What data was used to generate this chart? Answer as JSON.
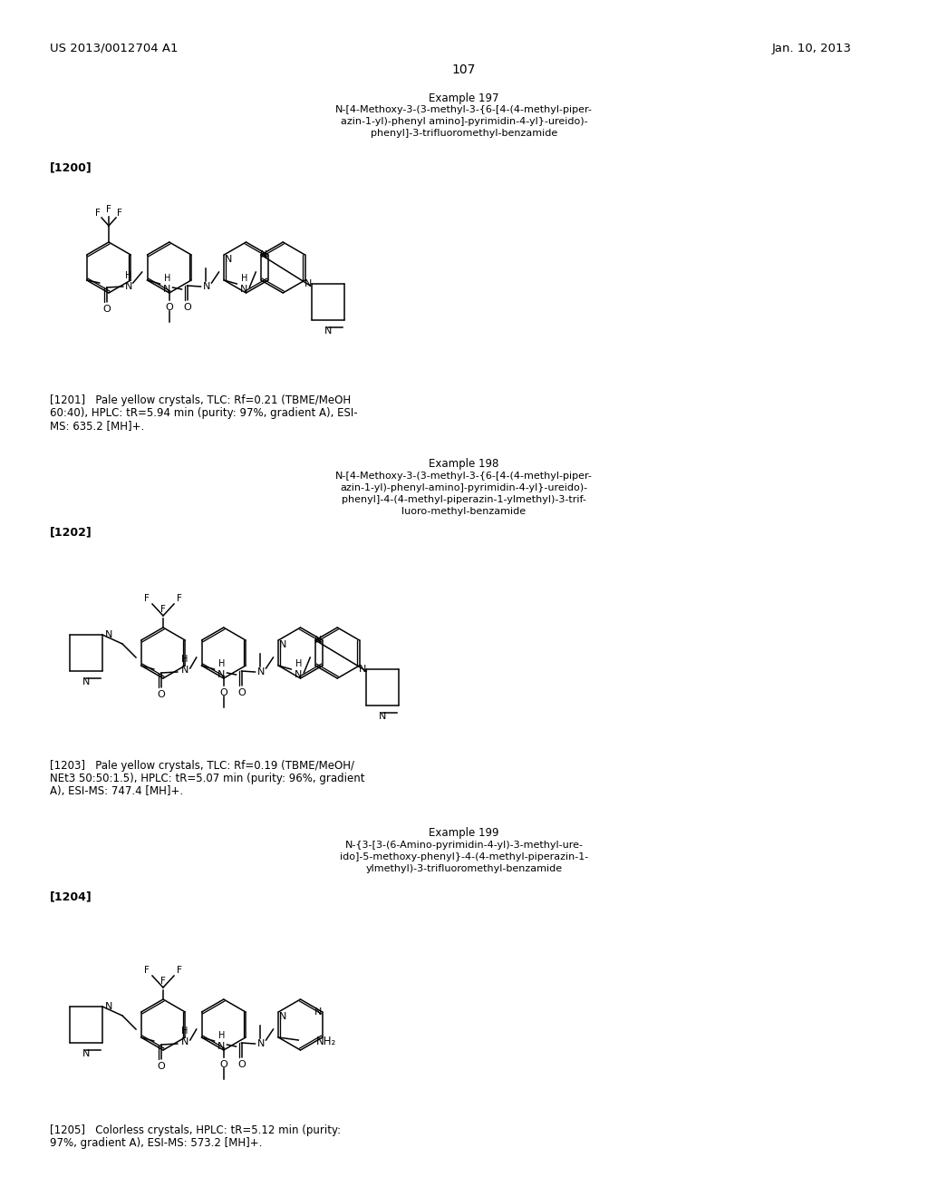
{
  "page_header_left": "US 2013/0012704 A1",
  "page_header_right": "Jan. 10, 2013",
  "page_number": "107",
  "background_color": "#ffffff",
  "text_color": "#000000",
  "example197": {
    "label": "Example 197",
    "name_lines": [
      "N-[4-Methoxy-3-(3-methyl-3-{6-[4-(4-methyl-piper-",
      "azin-1-yl)-phenyl amino]-pyrimidin-4-yl}-ureido)-",
      "phenyl]-3-trifluoromethyl-benzamide"
    ],
    "compound_id": "[1200]",
    "prop_lines": [
      "[1201]   Pale yellow crystals, TLC: Rf=0.21 (TBME/MeOH",
      "60:40), HPLC: tR=5.94 min (purity: 97%, gradient A), ESI-",
      "MS: 635.2 [MH]+."
    ]
  },
  "example198": {
    "label": "Example 198",
    "name_lines": [
      "N-[4-Methoxy-3-(3-methyl-3-{6-[4-(4-methyl-piper-",
      "azin-1-yl)-phenyl-amino]-pyrimidin-4-yl}-ureido)-",
      "phenyl]-4-(4-methyl-piperazin-1-ylmethyl)-3-trif-",
      "luoro-methyl-benzamide"
    ],
    "compound_id": "[1202]",
    "prop_lines": [
      "[1203]   Pale yellow crystals, TLC: Rf=0.19 (TBME/MeOH/",
      "NEt3 50:50:1.5), HPLC: tR=5.07 min (purity: 96%, gradient",
      "A), ESI-MS: 747.4 [MH]+."
    ]
  },
  "example199": {
    "label": "Example 199",
    "name_lines": [
      "N-{3-[3-(6-Amino-pyrimidin-4-yl)-3-methyl-ure-",
      "ido]-5-methoxy-phenyl}-4-(4-methyl-piperazin-1-",
      "ylmethyl)-3-trifluoromethyl-benzamide"
    ],
    "compound_id": "[1204]",
    "prop_lines": [
      "[1205]   Colorless crystals, HPLC: tR=5.12 min (purity:",
      "97%, gradient A), ESI-MS: 573.2 [MH]+."
    ]
  }
}
